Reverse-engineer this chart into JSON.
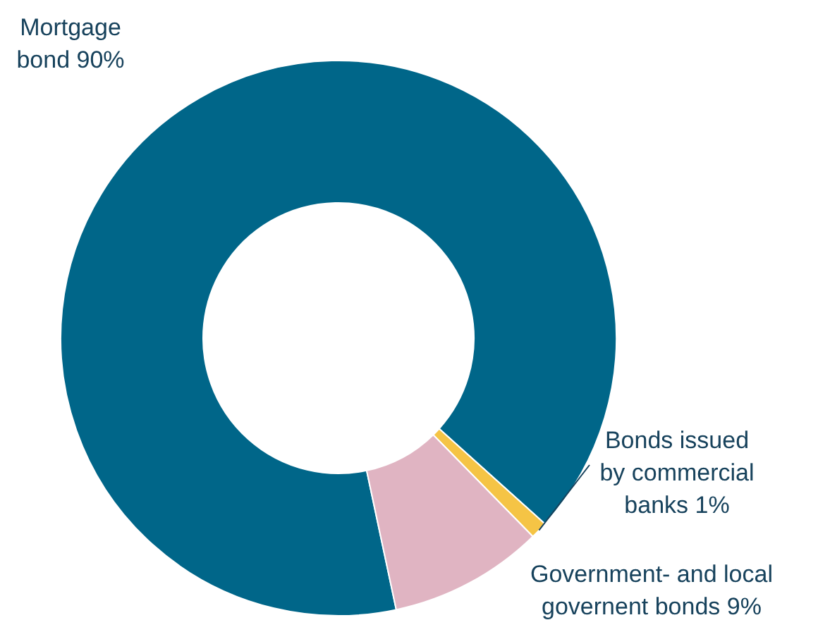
{
  "chart_data": {
    "type": "donut",
    "categories": [
      "Mortgage bond",
      "Bonds issued by commercial banks",
      "Government- and local governent bonds"
    ],
    "values": [
      90,
      1,
      9
    ],
    "value_labels": [
      "90%",
      "1%",
      "9%"
    ],
    "colors": [
      "#006689",
      "#f5c445",
      "#e0b4c2"
    ]
  }
}
